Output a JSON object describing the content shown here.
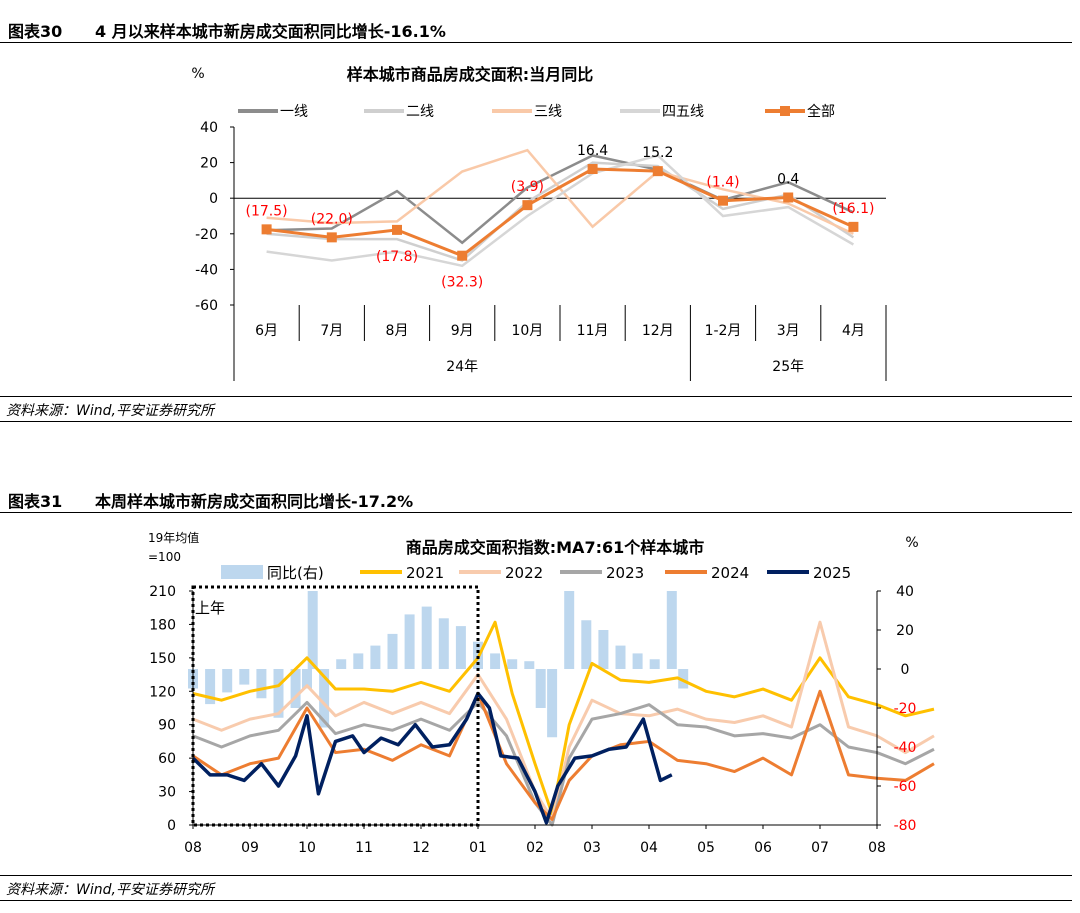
{
  "fig30": {
    "number": "图表30",
    "title": "4 月以来样本城市新房成交面积同比增长-16.1%",
    "source": "资料来源：Wind,平安证券研究所"
  },
  "fig31": {
    "number": "图表31",
    "title": "本周样本城市新房成交面积同比增长-17.2%",
    "source": "资料来源：Wind,平安证券研究所"
  },
  "chart_data": [
    {
      "type": "line",
      "title": "样本城市商品房成交面积:当月同比",
      "ylabel": "%",
      "ylim": [
        -60,
        40
      ],
      "yticks": [
        40,
        20,
        0,
        -20,
        -40,
        -60
      ],
      "categories": [
        "6月",
        "7月",
        "8月",
        "9月",
        "10月",
        "11月",
        "12月",
        "1-2月",
        "3月",
        "4月"
      ],
      "year_groups": [
        {
          "label": "24年",
          "span": [
            0,
            6
          ]
        },
        {
          "label": "25年",
          "span": [
            7,
            9
          ]
        }
      ],
      "legend_position": "top",
      "series": [
        {
          "name": "一线",
          "color": "#8c8c8c",
          "values": [
            -18,
            -17,
            4,
            -25,
            6,
            24,
            16,
            -1,
            9,
            -8
          ]
        },
        {
          "name": "二线",
          "color": "#cfcfcf",
          "values": [
            -20,
            -23,
            -23,
            -35,
            -2,
            20,
            18,
            -6,
            2,
            -22
          ]
        },
        {
          "name": "三线",
          "color": "#f9c9a8",
          "values": [
            -11,
            -14,
            -13,
            15,
            27,
            -16,
            15,
            5,
            -3,
            -20
          ]
        },
        {
          "name": "四五线",
          "color": "#d6d6d6",
          "values": [
            -30,
            -35,
            -30,
            -38,
            -10,
            14,
            24,
            -10,
            -5,
            -26
          ]
        },
        {
          "name": "全部",
          "color": "#ed7d31",
          "values": [
            -17.5,
            -22.0,
            -17.8,
            -32.3,
            -3.9,
            16.4,
            15.2,
            -1.4,
            0.4,
            -16.1
          ],
          "markers": true
        }
      ],
      "data_labels": [
        {
          "index": 0,
          "text": "(17.5)",
          "color": "#ff0000",
          "where": "above"
        },
        {
          "index": 1,
          "text": "(22.0)",
          "color": "#ff0000",
          "where": "above"
        },
        {
          "index": 2,
          "text": "(17.8)",
          "color": "#ff0000",
          "where": "below"
        },
        {
          "index": 3,
          "text": "(32.3)",
          "color": "#ff0000",
          "where": "below"
        },
        {
          "index": 4,
          "text": "(3.9)",
          "color": "#ff0000",
          "where": "above"
        },
        {
          "index": 5,
          "text": "16.4",
          "color": "#000000",
          "where": "above"
        },
        {
          "index": 6,
          "text": "15.2",
          "color": "#000000",
          "where": "above"
        },
        {
          "index": 7,
          "text": "(1.4)",
          "color": "#ff0000",
          "where": "above"
        },
        {
          "index": 8,
          "text": "0.4",
          "color": "#000000",
          "where": "above"
        },
        {
          "index": 9,
          "text": "(16.1)",
          "color": "#ff0000",
          "where": "above"
        }
      ]
    },
    {
      "type": "line",
      "title": "商品房成交面积指数:MA7:61个样本城市",
      "ylabel": "19年均值=100",
      "ylabel_lines": [
        "19年均值",
        "=100"
      ],
      "y2label": "%",
      "ylim": [
        0,
        210
      ],
      "y2lim": [
        -80,
        40
      ],
      "yticks": [
        210,
        180,
        150,
        120,
        90,
        60,
        30,
        0
      ],
      "y2ticks": [
        40,
        20,
        0,
        -20,
        -40,
        -60,
        -80
      ],
      "xticks": [
        "08",
        "09",
        "10",
        "11",
        "12",
        "01",
        "02",
        "03",
        "04",
        "05",
        "06",
        "07",
        "08"
      ],
      "legend_position": "top",
      "annotation": "上年",
      "series": [
        {
          "name": "同比(右)",
          "type": "bar",
          "color": "#bdd7ee",
          "axis": "right",
          "x": [
            0,
            0.3,
            0.6,
            0.9,
            1.2,
            1.5,
            1.8,
            2.0,
            2.1,
            2.3,
            2.6,
            2.9,
            3.2,
            3.5,
            3.8,
            4.1,
            4.4,
            4.7,
            5.0,
            5.3,
            5.6,
            5.9,
            6.1,
            6.3,
            6.6,
            6.9,
            7.2,
            7.5,
            7.8,
            8.1,
            8.4,
            8.6
          ],
          "values": [
            -10,
            -18,
            -12,
            -8,
            -15,
            -25,
            -20,
            -10,
            40,
            -30,
            5,
            8,
            12,
            18,
            28,
            32,
            26,
            22,
            14,
            8,
            5,
            4,
            -20,
            -35,
            40,
            25,
            20,
            12,
            8,
            5,
            40,
            -10
          ]
        },
        {
          "name": "2021",
          "color": "#ffc000",
          "axis": "left",
          "x": [
            0,
            0.5,
            1,
            1.5,
            2,
            2.5,
            3,
            3.5,
            4,
            4.5,
            5,
            5.3,
            5.6,
            6.0,
            6.3,
            6.6,
            7.0,
            7.5,
            8.0,
            8.5,
            9,
            9.5,
            10,
            10.5,
            11,
            11.5,
            12,
            12.5,
            13
          ],
          "values": [
            118,
            112,
            120,
            125,
            150,
            122,
            122,
            120,
            128,
            120,
            150,
            182,
            118,
            55,
            10,
            90,
            145,
            130,
            128,
            132,
            120,
            115,
            122,
            112,
            150,
            115,
            108,
            98,
            104
          ]
        },
        {
          "name": "2022",
          "color": "#f8cbad",
          "axis": "left",
          "x": [
            0,
            0.5,
            1,
            1.5,
            2,
            2.5,
            3,
            3.5,
            4,
            4.5,
            5,
            5.5,
            6.0,
            6.3,
            6.6,
            7.0,
            7.5,
            8.0,
            8.5,
            9,
            9.5,
            10,
            10.5,
            11,
            11.5,
            12,
            12.5,
            13
          ],
          "values": [
            95,
            85,
            95,
            100,
            125,
            98,
            110,
            100,
            110,
            100,
            135,
            95,
            30,
            5,
            70,
            112,
            100,
            98,
            104,
            95,
            92,
            98,
            88,
            182,
            88,
            80,
            65,
            80
          ]
        },
        {
          "name": "2023",
          "color": "#a6a6a6",
          "axis": "left",
          "x": [
            0,
            0.5,
            1,
            1.5,
            2,
            2.5,
            3,
            3.5,
            4,
            4.5,
            5,
            5.5,
            6.0,
            6.3,
            6.6,
            7.0,
            7.5,
            8.0,
            8.5,
            9,
            9.5,
            10,
            10.5,
            11,
            11.5,
            12,
            12.5,
            13
          ],
          "values": [
            80,
            70,
            80,
            85,
            110,
            82,
            90,
            85,
            95,
            85,
            110,
            80,
            20,
            0,
            60,
            95,
            100,
            108,
            90,
            88,
            80,
            82,
            78,
            90,
            70,
            65,
            55,
            68
          ]
        },
        {
          "name": "2024",
          "color": "#ed7d31",
          "axis": "left",
          "x": [
            0,
            0.5,
            1,
            1.5,
            2,
            2.5,
            3,
            3.5,
            4,
            4.5,
            5,
            5.5,
            6.0,
            6.3,
            6.6,
            7.0,
            7.5,
            8.0,
            8.5,
            9,
            9.5,
            10,
            10.5,
            11,
            11.5,
            12,
            12.5,
            13
          ],
          "values": [
            62,
            45,
            55,
            60,
            105,
            65,
            68,
            58,
            72,
            62,
            118,
            55,
            20,
            5,
            40,
            62,
            72,
            75,
            58,
            55,
            48,
            60,
            45,
            120,
            45,
            42,
            40,
            55
          ]
        },
        {
          "name": "2025",
          "color": "#002060",
          "axis": "left",
          "x": [
            0,
            0.3,
            0.6,
            0.9,
            1.2,
            1.5,
            1.8,
            2.0,
            2.2,
            2.5,
            2.8,
            3.0,
            3.3,
            3.6,
            3.9,
            4.2,
            4.5,
            4.8,
            5.0,
            5.2,
            5.4,
            5.7,
            6.0,
            6.2,
            6.4,
            6.7,
            7.0,
            7.3,
            7.6,
            7.9,
            8.2,
            8.4
          ],
          "values": [
            60,
            45,
            45,
            40,
            55,
            35,
            62,
            98,
            28,
            75,
            80,
            65,
            78,
            72,
            90,
            70,
            72,
            95,
            118,
            105,
            62,
            60,
            30,
            2,
            35,
            60,
            62,
            68,
            70,
            95,
            40,
            45
          ]
        }
      ]
    }
  ]
}
